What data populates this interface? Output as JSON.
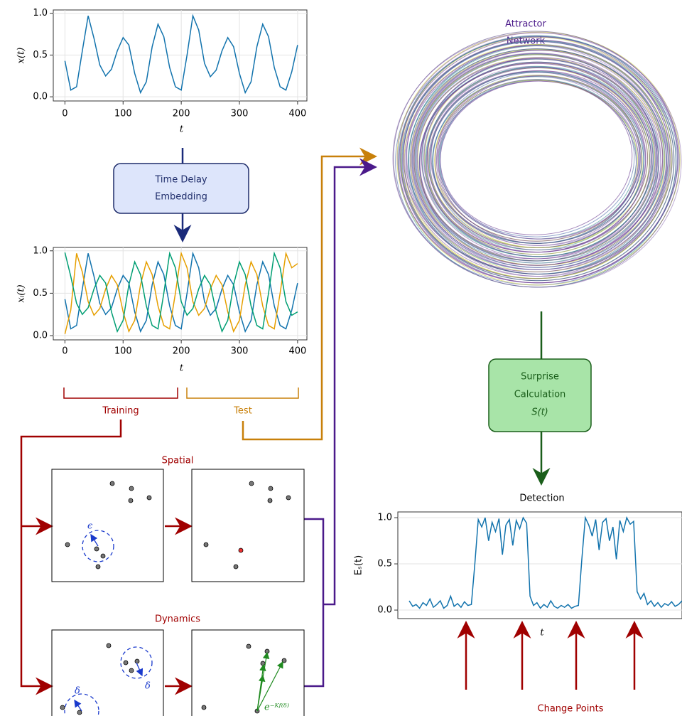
{
  "chart_data": [
    {
      "type": "line",
      "ylabel": "x(t)",
      "xlabel": "t",
      "xlim": [
        -20,
        416
      ],
      "ylim": [
        -0.05,
        1.04
      ],
      "xticks": [
        0,
        100,
        200,
        300,
        400
      ],
      "yticks": [
        {
          "value": 0,
          "label": "0.0"
        },
        {
          "value": 0.5,
          "label": "0.5"
        },
        {
          "value": 1,
          "label": "1.0"
        }
      ],
      "grid": true,
      "x": [
        0,
        10,
        20,
        30,
        40,
        50,
        60,
        70,
        80,
        90,
        100,
        110,
        120,
        130,
        140,
        150,
        160,
        170,
        180,
        190,
        200,
        210,
        220,
        230,
        240,
        250,
        260,
        270,
        280,
        290,
        300,
        310,
        320,
        330,
        340,
        350,
        360,
        370,
        380,
        390,
        400
      ],
      "series": [
        {
          "color": "#1273ad",
          "values": [
            0.43,
            0.08,
            0.12,
            0.55,
            0.97,
            0.7,
            0.38,
            0.25,
            0.33,
            0.55,
            0.71,
            0.62,
            0.28,
            0.05,
            0.18,
            0.6,
            0.87,
            0.72,
            0.35,
            0.12,
            0.08,
            0.5,
            0.97,
            0.8,
            0.4,
            0.24,
            0.32,
            0.55,
            0.71,
            0.6,
            0.28,
            0.05,
            0.18,
            0.6,
            0.87,
            0.72,
            0.35,
            0.12,
            0.08,
            0.3,
            0.62
          ]
        }
      ]
    },
    {
      "type": "line",
      "ylabel": "xᵢ(t)",
      "xlabel": "t",
      "xlim": [
        -20,
        416
      ],
      "ylim": [
        -0.05,
        1.04
      ],
      "xticks": [
        0,
        100,
        200,
        300,
        400
      ],
      "yticks": [
        {
          "value": 0,
          "label": "0.0"
        },
        {
          "value": 0.5,
          "label": "0.5"
        },
        {
          "value": 1,
          "label": "1.0"
        }
      ],
      "grid": true,
      "x": [
        0,
        10,
        20,
        30,
        40,
        50,
        60,
        70,
        80,
        90,
        100,
        110,
        120,
        130,
        140,
        150,
        160,
        170,
        180,
        190,
        200,
        210,
        220,
        230,
        240,
        250,
        260,
        270,
        280,
        290,
        300,
        310,
        320,
        330,
        340,
        350,
        360,
        370,
        380,
        390,
        400
      ],
      "series": [
        {
          "color": "#1273ad",
          "values": [
            0.43,
            0.08,
            0.12,
            0.55,
            0.97,
            0.7,
            0.38,
            0.25,
            0.33,
            0.55,
            0.71,
            0.62,
            0.28,
            0.05,
            0.18,
            0.6,
            0.87,
            0.72,
            0.35,
            0.12,
            0.08,
            0.5,
            0.97,
            0.8,
            0.4,
            0.24,
            0.32,
            0.55,
            0.71,
            0.6,
            0.28,
            0.05,
            0.18,
            0.6,
            0.87,
            0.72,
            0.35,
            0.12,
            0.08,
            0.3,
            0.62
          ]
        },
        {
          "color": "#e69f00",
          "values": [
            0.02,
            0.3,
            0.97,
            0.75,
            0.4,
            0.24,
            0.32,
            0.55,
            0.71,
            0.6,
            0.28,
            0.05,
            0.18,
            0.6,
            0.87,
            0.72,
            0.35,
            0.12,
            0.08,
            0.5,
            0.97,
            0.8,
            0.4,
            0.24,
            0.32,
            0.55,
            0.71,
            0.6,
            0.28,
            0.05,
            0.18,
            0.6,
            0.87,
            0.72,
            0.35,
            0.12,
            0.08,
            0.5,
            0.97,
            0.8,
            0.85
          ]
        },
        {
          "color": "#009e73",
          "values": [
            0.98,
            0.7,
            0.38,
            0.25,
            0.33,
            0.55,
            0.71,
            0.62,
            0.28,
            0.05,
            0.18,
            0.6,
            0.87,
            0.72,
            0.35,
            0.12,
            0.08,
            0.5,
            0.97,
            0.8,
            0.4,
            0.24,
            0.32,
            0.55,
            0.71,
            0.6,
            0.28,
            0.05,
            0.18,
            0.6,
            0.87,
            0.72,
            0.35,
            0.12,
            0.08,
            0.5,
            0.97,
            0.8,
            0.4,
            0.24,
            0.28
          ]
        }
      ]
    },
    {
      "type": "line",
      "title": "Detection",
      "ylabel": "Eₛ(t)",
      "xlabel": "t",
      "ylim": [
        -0.092,
        1.062
      ],
      "yticks": [
        {
          "value": 0,
          "label": "0.0"
        },
        {
          "value": 0.5,
          "label": "0.5"
        },
        {
          "value": 1,
          "label": "1.0"
        }
      ],
      "grid": true,
      "series": [
        {
          "color": "#1273ad",
          "values": [
            0.1,
            0.04,
            0.06,
            0.02,
            0.08,
            0.05,
            0.12,
            0.03,
            0.06,
            0.1,
            0.02,
            0.05,
            0.15,
            0.04,
            0.07,
            0.03,
            0.09,
            0.05,
            0.06,
            0.5,
            0.98,
            0.9,
            1.0,
            0.75,
            0.95,
            0.85,
            0.99,
            0.6,
            0.92,
            0.98,
            0.7,
            0.97,
            0.88,
            1.0,
            0.94,
            0.15,
            0.05,
            0.08,
            0.02,
            0.06,
            0.03,
            0.1,
            0.04,
            0.02,
            0.05,
            0.03,
            0.06,
            0.02,
            0.04,
            0.05,
            0.55,
            1.0,
            0.92,
            0.8,
            0.98,
            0.65,
            0.95,
            0.99,
            0.75,
            0.9,
            0.55,
            0.97,
            0.85,
            1.0,
            0.93,
            0.96,
            0.2,
            0.12,
            0.18,
            0.06,
            0.1,
            0.04,
            0.08,
            0.03,
            0.07,
            0.05,
            0.09,
            0.04,
            0.06,
            0.1
          ]
        }
      ]
    }
  ],
  "diagram": {
    "embedding": [
      "Time Delay",
      "Embedding"
    ],
    "training": "Training",
    "test": "Test",
    "spatial": "Spatial",
    "dynamics": "Dynamics",
    "epsilon": "ϵ",
    "delta1": "δ",
    "delta2": "δ",
    "kernel": "e⁻ᴷᶠ⁽ᵟ⁾",
    "attractor": [
      "Attractor",
      "Network"
    ],
    "surprise": [
      "Surprise",
      "Calculation",
      "S(t)"
    ],
    "change_points": "Change Points"
  }
}
